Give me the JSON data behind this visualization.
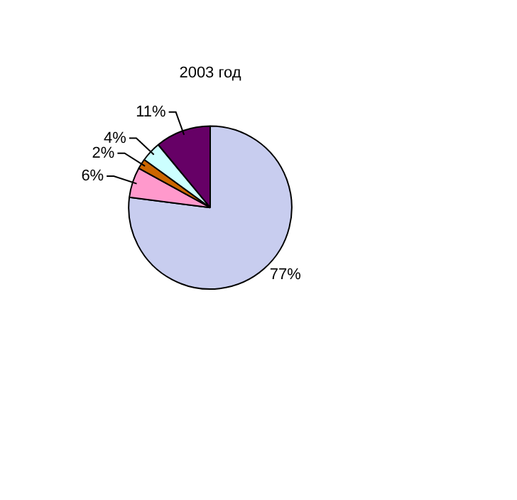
{
  "chart_data": {
    "type": "pie",
    "title": "2003 год",
    "categories": [
      null,
      null,
      null,
      null,
      null
    ],
    "values": [
      77,
      6,
      2,
      4,
      11
    ],
    "value_labels": [
      "77%",
      "6%",
      "2%",
      "4%",
      "11%"
    ],
    "colors": [
      "#c8cdef",
      "#ff99cc",
      "#cc6600",
      "#ccffff",
      "#660066"
    ]
  }
}
